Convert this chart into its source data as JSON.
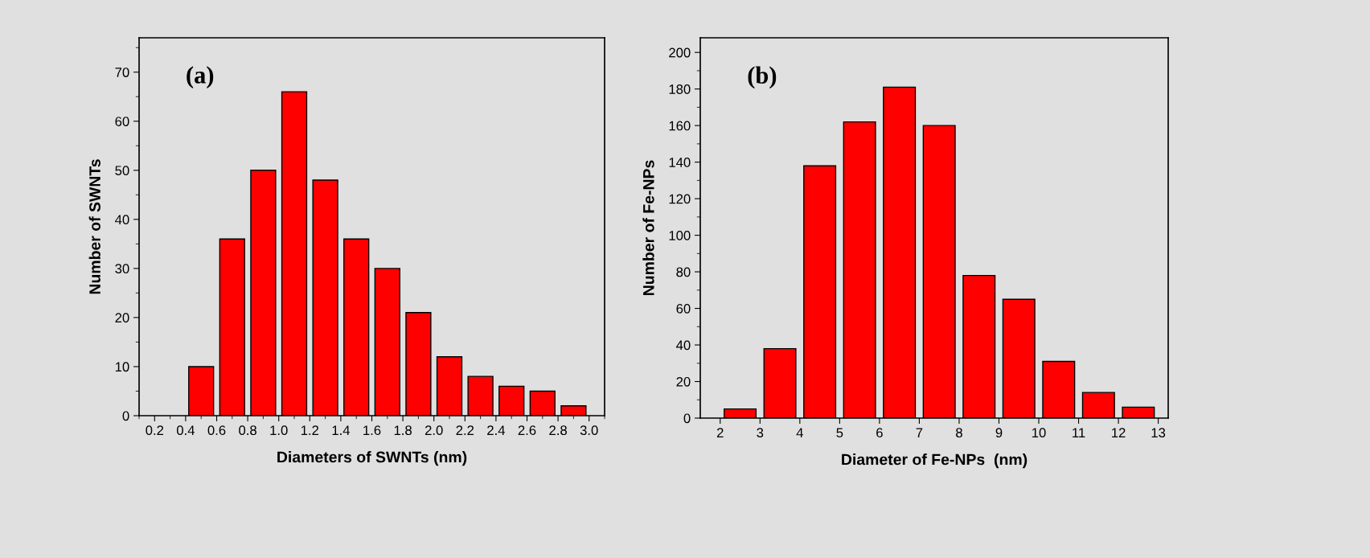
{
  "chart_data": [
    {
      "type": "histogram",
      "xlabel": "Diameters of SWNTs (nm)",
      "ylabel": "Number of SWNTs",
      "annotations": [
        "(a)"
      ],
      "color": "#ff0000",
      "bins": [
        0.4,
        0.6,
        0.8,
        1.0,
        1.2,
        1.4,
        1.6,
        1.8,
        2.0,
        2.2,
        2.4,
        2.6,
        2.8,
        3.0
      ],
      "values": [
        10,
        36,
        50,
        66,
        48,
        36,
        30,
        21,
        12,
        8,
        6,
        5,
        2
      ],
      "xlim": [
        0.1,
        3.1
      ],
      "xticks": [
        {
          "value": 0.2,
          "label": "0.2"
        },
        {
          "value": 0.4,
          "label": "0.4"
        },
        {
          "value": 0.6,
          "label": "0.6"
        },
        {
          "value": 0.8,
          "label": "0.8"
        },
        {
          "value": 1.0,
          "label": "1.0"
        },
        {
          "value": 1.2,
          "label": "1.2"
        },
        {
          "value": 1.4,
          "label": "1.4"
        },
        {
          "value": 1.6,
          "label": "1.6"
        },
        {
          "value": 1.8,
          "label": "1.8"
        },
        {
          "value": 2.0,
          "label": "2.0"
        },
        {
          "value": 2.2,
          "label": "2.2"
        },
        {
          "value": 2.4,
          "label": "2.4"
        },
        {
          "value": 2.6,
          "label": "2.6"
        },
        {
          "value": 2.8,
          "label": "2.8"
        },
        {
          "value": 3.0,
          "label": "3.0"
        }
      ],
      "ylim": [
        0,
        77
      ],
      "yticks": [
        0,
        10,
        20,
        30,
        40,
        50,
        60,
        70
      ],
      "grid": false
    },
    {
      "type": "histogram",
      "xlabel": "Diameter of Fe-NPs  (nm)",
      "ylabel": "Number of Fe-NPs",
      "annotations": [
        "(b)"
      ],
      "color": "#ff0000",
      "bins": [
        2,
        3,
        4,
        5,
        6,
        7,
        8,
        9,
        10,
        11,
        12,
        13
      ],
      "values": [
        5,
        38,
        138,
        162,
        181,
        160,
        78,
        65,
        31,
        14,
        6
      ],
      "xlim": [
        1.5,
        13.25
      ],
      "xticks": [
        2,
        3,
        4,
        5,
        6,
        7,
        8,
        9,
        10,
        11,
        12,
        13
      ],
      "ylim": [
        0,
        208
      ],
      "yticks": [
        0,
        20,
        40,
        60,
        80,
        100,
        120,
        140,
        160,
        180,
        200
      ],
      "grid": false
    }
  ]
}
